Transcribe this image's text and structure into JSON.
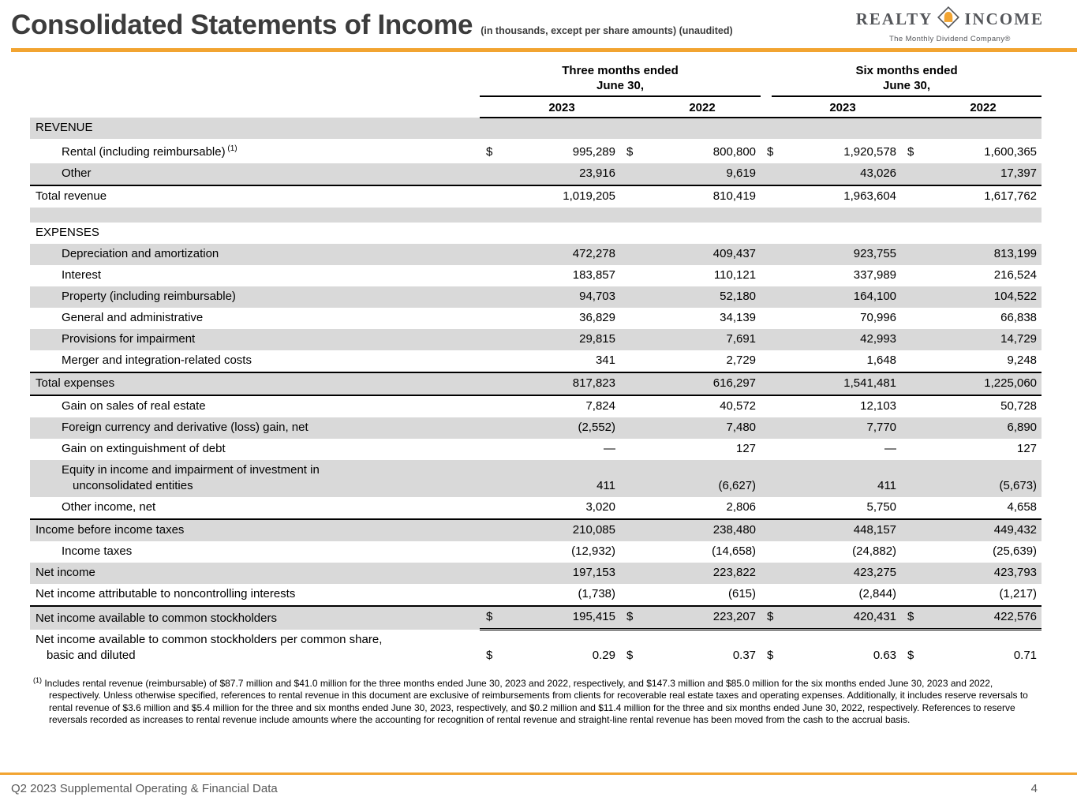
{
  "colors": {
    "accent": "#F2A431",
    "row_shade": "#D9D9D9"
  },
  "header": {
    "title": "Consolidated Statements of Income",
    "subtitle": "(in thousands, except per share amounts) (unaudited)",
    "logo": {
      "word_left": "REALTY",
      "word_right": "INCOME",
      "tagline": "The Monthly Dividend Company®"
    }
  },
  "table": {
    "col_groups": [
      {
        "label": "Three months ended\nJune 30,"
      },
      {
        "label": "Six months ended\nJune 30,"
      }
    ],
    "years": [
      "2023",
      "2022",
      "2023",
      "2022"
    ],
    "rows": [
      {
        "label": "REVENUE",
        "shaded": true
      },
      {
        "label": "Rental (including reimbursable)",
        "sup": "(1)",
        "indent": true,
        "dollars": true,
        "values": [
          "995,289",
          "800,800",
          "1,920,578",
          "1,600,365"
        ]
      },
      {
        "label": "Other",
        "indent": true,
        "shaded": true,
        "values": [
          "23,916",
          "9,619",
          "43,026",
          "17,397"
        ]
      },
      {
        "label": "Total revenue",
        "topBorder": true,
        "values": [
          "1,019,205",
          "810,419",
          "1,963,604",
          "1,617,762"
        ]
      },
      {
        "blank": true,
        "shaded": true
      },
      {
        "label": "EXPENSES"
      },
      {
        "label": "Depreciation and amortization",
        "indent": true,
        "shaded": true,
        "values": [
          "472,278",
          "409,437",
          "923,755",
          "813,199"
        ]
      },
      {
        "label": "Interest",
        "indent": true,
        "values": [
          "183,857",
          "110,121",
          "337,989",
          "216,524"
        ]
      },
      {
        "label": "Property (including reimbursable)",
        "indent": true,
        "shaded": true,
        "values": [
          "94,703",
          "52,180",
          "164,100",
          "104,522"
        ]
      },
      {
        "label": "General and administrative",
        "indent": true,
        "values": [
          "36,829",
          "34,139",
          "70,996",
          "66,838"
        ]
      },
      {
        "label": "Provisions for impairment",
        "indent": true,
        "shaded": true,
        "values": [
          "29,815",
          "7,691",
          "42,993",
          "14,729"
        ]
      },
      {
        "label": "Merger and integration-related costs",
        "indent": true,
        "values": [
          "341",
          "2,729",
          "1,648",
          "9,248"
        ]
      },
      {
        "label": "Total expenses",
        "shaded": true,
        "topBorder": true,
        "bottomBorder": true,
        "values": [
          "817,823",
          "616,297",
          "1,541,481",
          "1,225,060"
        ]
      },
      {
        "label": "Gain on sales of real estate",
        "indent": true,
        "values": [
          "7,824",
          "40,572",
          "12,103",
          "50,728"
        ]
      },
      {
        "label": "Foreign currency and derivative (loss) gain, net",
        "indent": true,
        "shaded": true,
        "values": [
          "(2,552)",
          "7,480",
          "7,770",
          "6,890"
        ]
      },
      {
        "label": "Gain on extinguishment of debt",
        "indent": true,
        "values": [
          "—",
          "127",
          "—",
          "127"
        ]
      },
      {
        "label": "Equity in income and impairment of investment in",
        "label2": "unconsolidated entities",
        "indent": true,
        "shaded": true,
        "values": [
          "411",
          "(6,627)",
          "411",
          "(5,673)"
        ]
      },
      {
        "label": "Other income, net",
        "indent": true,
        "values": [
          "3,020",
          "2,806",
          "5,750",
          "4,658"
        ]
      },
      {
        "label": "Income before income taxes",
        "shaded": true,
        "topBorder": true,
        "values": [
          "210,085",
          "238,480",
          "448,157",
          "449,432"
        ]
      },
      {
        "label": "Income taxes",
        "indent": true,
        "values": [
          "(12,932)",
          "(14,658)",
          "(24,882)",
          "(25,639)"
        ]
      },
      {
        "label": "Net income",
        "shaded": true,
        "values": [
          "197,153",
          "223,822",
          "423,275",
          "423,793"
        ]
      },
      {
        "label": "Net income attributable to noncontrolling interests",
        "values": [
          "(1,738)",
          "(615)",
          "(2,844)",
          "(1,217)"
        ]
      },
      {
        "label": "Net income available to common stockholders",
        "shaded": true,
        "topBorder": true,
        "dollars": true,
        "doubleUnderline": true,
        "values": [
          "195,415",
          "223,207",
          "420,431",
          "422,576"
        ]
      },
      {
        "label": "Net income available to common stockholders per common share,",
        "label2": "basic and diluted",
        "dollars": true,
        "values": [
          "0.29",
          "0.37",
          "0.63",
          "0.71"
        ]
      }
    ]
  },
  "footnote": {
    "marker": "(1)",
    "text": "Includes rental revenue (reimbursable) of $87.7 million and $41.0 million for the three months ended June 30, 2023 and 2022, respectively, and $147.3 million and $85.0 million for the six months ended June 30, 2023 and 2022, respectively. Unless otherwise specified, references to rental revenue in this document are exclusive of reimbursements from clients for recoverable real estate taxes and operating expenses. Additionally, it includes reserve reversals to rental revenue of $3.6 million and $5.4 million for the three and six months ended June 30, 2023, respectively, and $0.2 million and $11.4 million for the three and six months ended June 30, 2022, respectively. References to reserve reversals recorded as increases to rental revenue include amounts where the accounting for recognition of rental revenue and straight-line rental revenue has been moved from the cash to the accrual basis."
  },
  "footer": {
    "left": "Q2 2023 Supplemental Operating & Financial Data",
    "page": "4"
  }
}
